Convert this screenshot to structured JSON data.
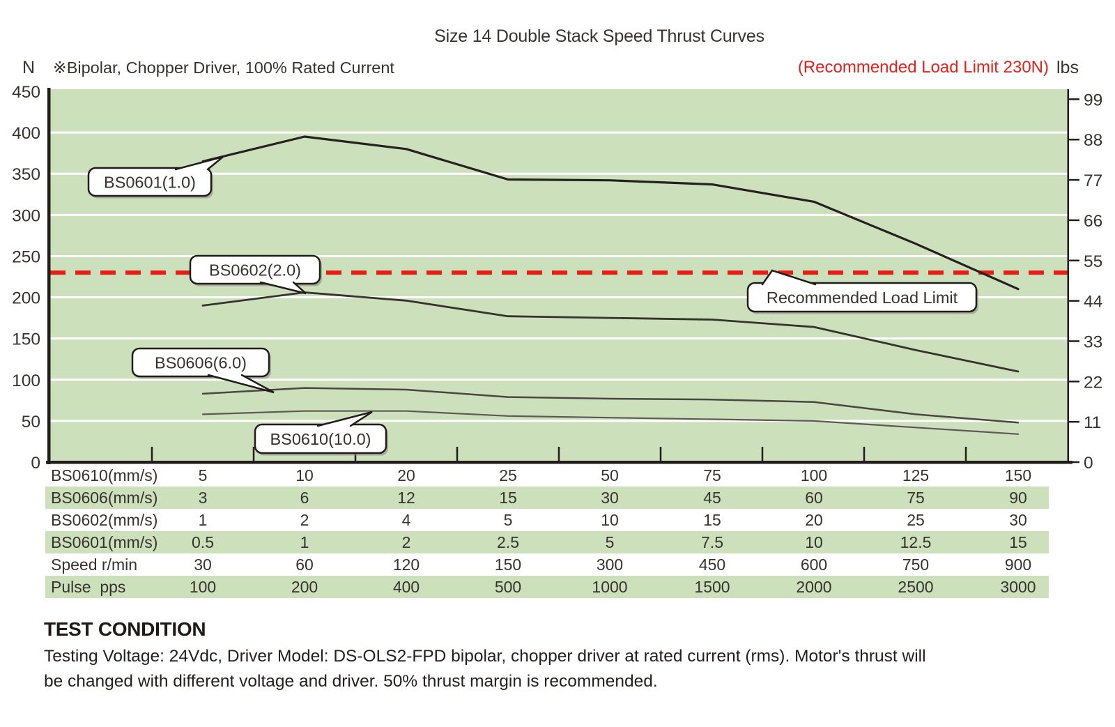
{
  "title": "Size 14 Double Stack Speed Thrust Curves",
  "note": "※Bipolar, Chopper Driver, 100% Rated Current",
  "load_limit_note": "(Recommended Load Limit 230N)",
  "left_axis": {
    "unit": "N",
    "ticks": [
      450,
      400,
      350,
      300,
      250,
      200,
      150,
      100,
      50,
      0
    ]
  },
  "right_axis": {
    "unit": "lbs",
    "ticks": [
      99,
      88,
      77,
      66,
      55,
      44,
      33,
      22,
      11,
      0
    ]
  },
  "chart_data": {
    "type": "line",
    "categories": [
      "5",
      "10",
      "20",
      "25",
      "50",
      "75",
      "100",
      "125",
      "150"
    ],
    "categories_note": "x positions shared with speed table columns (BS0610 mm/s row)",
    "series": [
      {
        "name": "BS0601(1.0)",
        "values": [
          365,
          395,
          380,
          343,
          342,
          337,
          316,
          265,
          210
        ],
        "color": "#262120",
        "width": 3.2
      },
      {
        "name": "BS0602(2.0)",
        "values": [
          190,
          206,
          196,
          177,
          175,
          173,
          164,
          136,
          110
        ],
        "color": "#37322e",
        "width": 2.8
      },
      {
        "name": "BS0606(6.0)",
        "values": [
          83,
          90,
          88,
          79,
          77,
          76,
          73,
          58,
          48
        ],
        "color": "#4b4641",
        "width": 2.5
      },
      {
        "name": "BS0610(10.0)",
        "values": [
          58,
          62,
          62,
          56,
          54,
          52,
          50,
          42,
          34
        ],
        "color": "#5e5954",
        "width": 2.2
      }
    ],
    "ref_line": {
      "label": "Recommended Load Limit",
      "value": 230,
      "color": "#e61d14",
      "style": "dashed"
    },
    "ylabel": "N",
    "ylim": [
      0,
      450
    ],
    "ytick_step": 50,
    "y2label": "lbs",
    "y2ticks": [
      99,
      88,
      77,
      66,
      55,
      44,
      33,
      22,
      11,
      0
    ],
    "lbs_per_newton": 0.2248,
    "grid": "horizontal-white",
    "plot_bg": "#cde0bc",
    "legend": "inline-callouts"
  },
  "callouts": [
    {
      "id": "bs0601",
      "label": "BS0601(1.0)"
    },
    {
      "id": "bs0602",
      "label": "BS0602(2.0)"
    },
    {
      "id": "bs0606",
      "label": "BS0606(6.0)"
    },
    {
      "id": "bs0610",
      "label": "BS0610(10.0)"
    },
    {
      "id": "rll",
      "label": "Recommended Load Limit"
    }
  ],
  "table": {
    "rows": [
      {
        "label": "BS0610(mm/s)",
        "values": [
          "5",
          "10",
          "20",
          "25",
          "50",
          "75",
          "100",
          "125",
          "150"
        ],
        "shaded": false
      },
      {
        "label": "BS0606(mm/s)",
        "values": [
          "3",
          "6",
          "12",
          "15",
          "30",
          "45",
          "60",
          "75",
          "90"
        ],
        "shaded": true
      },
      {
        "label": "BS0602(mm/s)",
        "values": [
          "1",
          "2",
          "4",
          "5",
          "10",
          "15",
          "20",
          "25",
          "30"
        ],
        "shaded": false
      },
      {
        "label": "BS0601(mm/s)",
        "values": [
          "0.5",
          "1",
          "2",
          "2.5",
          "5",
          "7.5",
          "10",
          "12.5",
          "15"
        ],
        "shaded": true
      },
      {
        "label": "Speed r/min",
        "values": [
          "30",
          "60",
          "120",
          "150",
          "300",
          "450",
          "600",
          "750",
          "900"
        ],
        "shaded": false
      },
      {
        "label": "Pulse  pps",
        "values": [
          "100",
          "200",
          "400",
          "500",
          "1000",
          "1500",
          "2000",
          "2500",
          "3000"
        ],
        "shaded": true
      }
    ]
  },
  "footer": {
    "heading": "TEST CONDITION",
    "line1": "Testing Voltage: 24Vdc, Driver Model: DS-OLS2-FPD bipolar, chopper driver at rated current (rms). Motor's thrust will",
    "line2": "be changed with different voltage and driver. 50% thrust margin is recommended."
  },
  "colors": {
    "accent_red": "#e62017",
    "plot_green": "#cde0bc",
    "text": "#38322e",
    "axis": "#221d1a"
  }
}
